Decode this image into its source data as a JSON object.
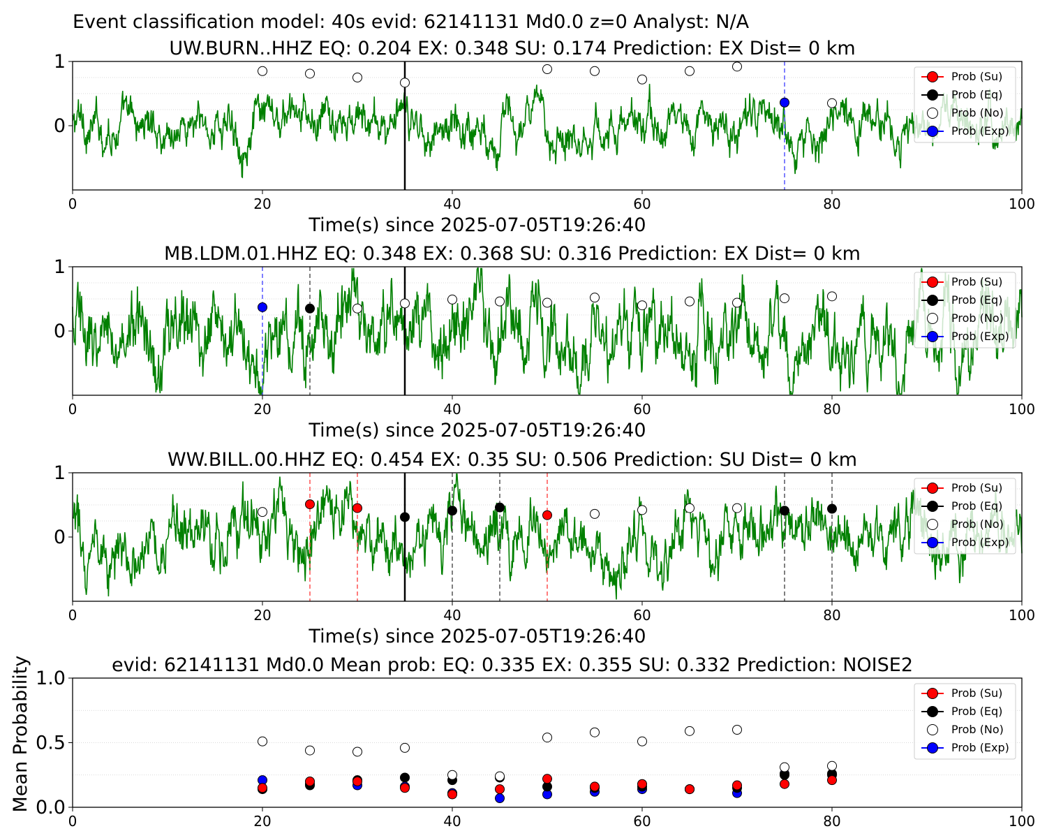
{
  "figure": {
    "suptitle": "Event classification model: 40s evid: 62141131 Md0.0 z=0 Analyst: N/A"
  },
  "colors": {
    "waveform": "#008000",
    "su": "#ff0000",
    "eq": "#000000",
    "no": "#ffffff",
    "exp": "#0000ff",
    "grid": "#cccccc"
  },
  "legend": {
    "entries": [
      "Prob (Su)",
      "Prob (Eq)",
      "Prob (No)",
      "Prob (Exp)"
    ],
    "placement": "top-right"
  },
  "chart_data": [
    {
      "type": "line",
      "title": "UW.BURN..HHZ   EQ: 0.204  EX: 0.348  SU: 0.174   Prediction: EX    Dist= 0 km",
      "xlabel": "Time(s) since 2025-07-05T19:26:40",
      "ylabel": "",
      "xlim": [
        0,
        100
      ],
      "ylim": [
        -1,
        1
      ],
      "xticks": [
        "0",
        "20",
        "40",
        "60",
        "80",
        "100"
      ],
      "yticks": [
        "1",
        "0"
      ],
      "grid": "horizontal dotted",
      "waveform_amplitude": 0.22,
      "window_start_line": 35,
      "marker_lines": [
        {
          "x": 75,
          "class": "Exp"
        }
      ],
      "points": [
        {
          "x": 20,
          "y": 0.85,
          "class": "No"
        },
        {
          "x": 25,
          "y": 0.81,
          "class": "No"
        },
        {
          "x": 30,
          "y": 0.75,
          "class": "No"
        },
        {
          "x": 35,
          "y": 0.67,
          "class": "No"
        },
        {
          "x": 50,
          "y": 0.88,
          "class": "No"
        },
        {
          "x": 55,
          "y": 0.85,
          "class": "No"
        },
        {
          "x": 60,
          "y": 0.72,
          "class": "No"
        },
        {
          "x": 65,
          "y": 0.85,
          "class": "No"
        },
        {
          "x": 70,
          "y": 0.92,
          "class": "No"
        },
        {
          "x": 75,
          "y": 0.36,
          "class": "Exp"
        },
        {
          "x": 80,
          "y": 0.35,
          "class": "No"
        }
      ]
    },
    {
      "type": "line",
      "title": "MB.LDM.01.HHZ   EQ: 0.348  EX: 0.368  SU: 0.316   Prediction: EX    Dist= 0 km",
      "xlabel": "Time(s) since 2025-07-05T19:26:40",
      "ylabel": "",
      "xlim": [
        0,
        100
      ],
      "ylim": [
        -1,
        1
      ],
      "xticks": [
        "0",
        "20",
        "40",
        "60",
        "80",
        "100"
      ],
      "yticks": [
        "1",
        "0"
      ],
      "grid": "horizontal dotted",
      "waveform_amplitude": 0.38,
      "window_start_line": 35,
      "marker_lines": [
        {
          "x": 20,
          "class": "Exp"
        },
        {
          "x": 25,
          "class": "Eq"
        }
      ],
      "points": [
        {
          "x": 20,
          "y": 0.37,
          "class": "Exp"
        },
        {
          "x": 25,
          "y": 0.35,
          "class": "Eq"
        },
        {
          "x": 30,
          "y": 0.35,
          "class": "No"
        },
        {
          "x": 35,
          "y": 0.43,
          "class": "No"
        },
        {
          "x": 40,
          "y": 0.49,
          "class": "No"
        },
        {
          "x": 45,
          "y": 0.46,
          "class": "No"
        },
        {
          "x": 50,
          "y": 0.44,
          "class": "No"
        },
        {
          "x": 55,
          "y": 0.52,
          "class": "No"
        },
        {
          "x": 60,
          "y": 0.4,
          "class": "No"
        },
        {
          "x": 65,
          "y": 0.46,
          "class": "No"
        },
        {
          "x": 70,
          "y": 0.44,
          "class": "No"
        },
        {
          "x": 75,
          "y": 0.51,
          "class": "No"
        },
        {
          "x": 80,
          "y": 0.54,
          "class": "No"
        }
      ]
    },
    {
      "type": "line",
      "title": "WW.BILL.00.HHZ   EQ: 0.454  EX: 0.35  SU: 0.506   Prediction: SU    Dist= 0 km",
      "xlabel": "Time(s) since 2025-07-05T19:26:40",
      "ylabel": "",
      "xlim": [
        0,
        100
      ],
      "ylim": [
        -1,
        1
      ],
      "xticks": [
        "0",
        "20",
        "40",
        "60",
        "80",
        "100"
      ],
      "yticks": [
        "1",
        "0"
      ],
      "grid": "horizontal dotted",
      "waveform_amplitude": 0.3,
      "window_start_line": 35,
      "marker_lines": [
        {
          "x": 25,
          "class": "Su"
        },
        {
          "x": 30,
          "class": "Su"
        },
        {
          "x": 40,
          "class": "Eq"
        },
        {
          "x": 45,
          "class": "Eq"
        },
        {
          "x": 50,
          "class": "Su"
        },
        {
          "x": 75,
          "class": "Eq"
        },
        {
          "x": 80,
          "class": "Eq"
        }
      ],
      "points": [
        {
          "x": 20,
          "y": 0.39,
          "class": "No"
        },
        {
          "x": 25,
          "y": 0.51,
          "class": "Su"
        },
        {
          "x": 30,
          "y": 0.45,
          "class": "Su"
        },
        {
          "x": 35,
          "y": 0.31,
          "class": "Eq"
        },
        {
          "x": 40,
          "y": 0.41,
          "class": "Eq"
        },
        {
          "x": 45,
          "y": 0.46,
          "class": "Eq"
        },
        {
          "x": 50,
          "y": 0.34,
          "class": "Su"
        },
        {
          "x": 55,
          "y": 0.36,
          "class": "No"
        },
        {
          "x": 60,
          "y": 0.42,
          "class": "No"
        },
        {
          "x": 65,
          "y": 0.45,
          "class": "No"
        },
        {
          "x": 70,
          "y": 0.45,
          "class": "No"
        },
        {
          "x": 75,
          "y": 0.41,
          "class": "Eq"
        },
        {
          "x": 80,
          "y": 0.44,
          "class": "Eq"
        }
      ]
    },
    {
      "type": "scatter",
      "title": "evid: 62141131  Md0.0   Mean prob:   EQ: 0.335  EX: 0.355  SU: 0.332   Prediction: NOISE2",
      "xlabel": "",
      "ylabel": "Mean Probability",
      "xlim": [
        0,
        100
      ],
      "ylim": [
        0,
        1
      ],
      "xticks": [
        "0",
        "20",
        "40",
        "60",
        "80",
        "100"
      ],
      "yticks": [
        "1.0",
        "0.5",
        "0.0"
      ],
      "grid": "horizontal dotted",
      "x": [
        20,
        25,
        30,
        35,
        40,
        45,
        50,
        55,
        60,
        65,
        70,
        75,
        80
      ],
      "series": [
        {
          "name": "Prob (Exp)",
          "class": "Exp",
          "values": [
            0.21,
            0.18,
            0.17,
            0.16,
            0.11,
            0.07,
            0.1,
            0.12,
            0.14,
            0.14,
            0.11,
            0.26,
            0.25
          ]
        },
        {
          "name": "Prob (Eq)",
          "class": "Eq",
          "values": [
            0.14,
            0.17,
            0.21,
            0.23,
            0.21,
            0.23,
            0.16,
            0.15,
            0.16,
            0.14,
            0.15,
            0.25,
            0.26
          ]
        },
        {
          "name": "Prob (Su)",
          "class": "Su",
          "values": [
            0.15,
            0.2,
            0.2,
            0.15,
            0.1,
            0.14,
            0.22,
            0.16,
            0.18,
            0.14,
            0.17,
            0.18,
            0.21
          ]
        },
        {
          "name": "Prob (No)",
          "class": "No",
          "values": [
            0.51,
            0.44,
            0.43,
            0.46,
            0.25,
            0.24,
            0.54,
            0.58,
            0.51,
            0.59,
            0.6,
            0.31,
            0.32
          ]
        }
      ]
    }
  ]
}
